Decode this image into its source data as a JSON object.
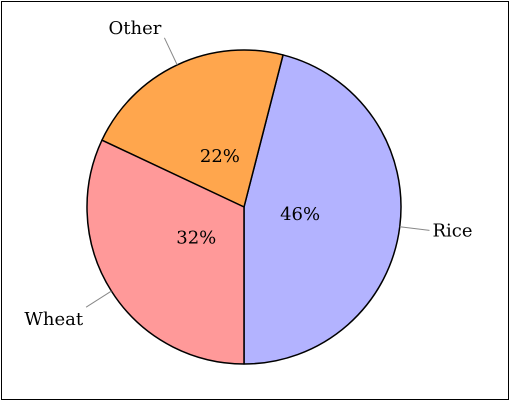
{
  "chart_data": {
    "type": "pie",
    "title": "",
    "slices": [
      {
        "label": "Rice",
        "value": 46,
        "value_label": "46%",
        "color": "#b3b3ff"
      },
      {
        "label": "Other",
        "value": 22,
        "value_label": "22%",
        "color": "#ffa64d"
      },
      {
        "label": "Wheat",
        "value": 32,
        "value_label": "32%",
        "color": "#ff9999"
      }
    ],
    "legend": "none",
    "labels": "outside-with-leader-lines"
  }
}
